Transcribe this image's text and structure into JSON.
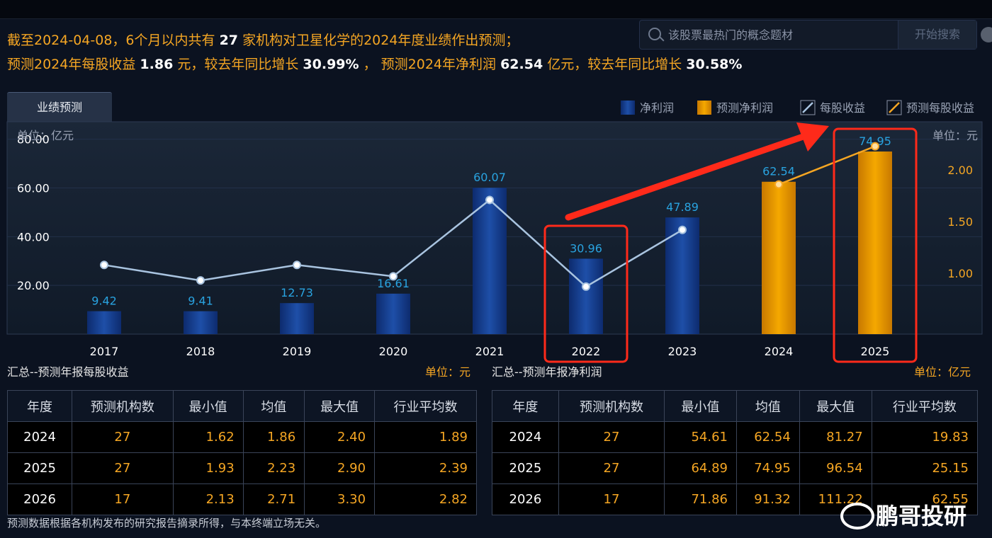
{
  "headline": {
    "line1_a": "截至2024-04-08，6个月以内共有",
    "line1_count": "27",
    "line1_b": "家机构对卫星化学的2024年度业绩作出预测；",
    "line2_a": "预测2024年每股收益",
    "line2_eps": "1.86",
    "line2_b": "元，较去年同比增长",
    "line2_eps_growth": "30.99%",
    "line2_c": "，",
    "line2_d": "预测2024年净利润",
    "line2_np": "62.54",
    "line2_e": "亿元，较去年同比增长",
    "line2_np_growth": "30.58%"
  },
  "search": {
    "placeholder": "该股票最热门的概念题材",
    "button": "开始搜索"
  },
  "tab": {
    "label": "业绩预测"
  },
  "chart_data": {
    "type": "bar",
    "left_unit": "单位：亿元",
    "right_unit": "单位：元",
    "categories": [
      "2017",
      "2018",
      "2019",
      "2020",
      "2021",
      "2022",
      "2023",
      "2024",
      "2025"
    ],
    "y_ticks": [
      "20.00",
      "40.00",
      "60.00",
      "80.00"
    ],
    "y2_ticks": [
      "1.00",
      "1.50",
      "2.00"
    ],
    "ylim": [
      0,
      86
    ],
    "y2lim": [
      0.41,
      2.44
    ],
    "legend": [
      "净利润",
      "预测净利润",
      "每股收益",
      "预测每股收益"
    ],
    "series": [
      {
        "name": "净利润",
        "values": [
          9.42,
          9.41,
          12.73,
          16.61,
          60.07,
          30.96,
          47.89,
          null,
          null
        ],
        "color": "#1e4fa8"
      },
      {
        "name": "预测净利润",
        "values": [
          null,
          null,
          null,
          null,
          null,
          null,
          null,
          62.54,
          74.95
        ],
        "color": "#f5a800"
      },
      {
        "name": "每股收益",
        "values": [
          1.08,
          0.93,
          1.08,
          0.97,
          1.71,
          0.87,
          1.42,
          null,
          null
        ],
        "color": "#a9c4e0"
      },
      {
        "name": "预测每股收益",
        "values": [
          null,
          null,
          null,
          null,
          null,
          null,
          null,
          1.86,
          2.23
        ],
        "color": "#f5a623"
      }
    ],
    "bar_labels": [
      "9.42",
      "9.41",
      "12.73",
      "16.61",
      "60.07",
      "30.96",
      "47.89",
      "62.54",
      "74.95"
    ],
    "highlight_color": "#ff2a1a",
    "highlight_categories": [
      "2022",
      "2025"
    ]
  },
  "eps_table": {
    "title": "汇总--预测年报每股收益",
    "unit": "单位：元",
    "headers": [
      "年度",
      "预测机构数",
      "最小值",
      "均值",
      "最大值",
      "行业平均数"
    ],
    "rows": [
      [
        "2024",
        "27",
        "1.62",
        "1.86",
        "2.40",
        "1.89"
      ],
      [
        "2025",
        "27",
        "1.93",
        "2.23",
        "2.90",
        "2.39"
      ],
      [
        "2026",
        "17",
        "2.13",
        "2.71",
        "3.30",
        "2.82"
      ]
    ]
  },
  "profit_table": {
    "title": "汇总--预测年报净利润",
    "unit": "单位：亿元",
    "headers": [
      "年度",
      "预测机构数",
      "最小值",
      "均值",
      "最大值",
      "行业平均数"
    ],
    "rows": [
      [
        "2024",
        "27",
        "54.61",
        "62.54",
        "81.27",
        "19.83"
      ],
      [
        "2025",
        "27",
        "64.89",
        "74.95",
        "96.54",
        "25.15"
      ],
      [
        "2026",
        "17",
        "71.86",
        "91.32",
        "111.22",
        "62.55"
      ]
    ]
  },
  "footnote": "预测数据根据各机构发布的研究报告摘录所得，与本终端立场无关。",
  "watermark": "鹏哥投研"
}
